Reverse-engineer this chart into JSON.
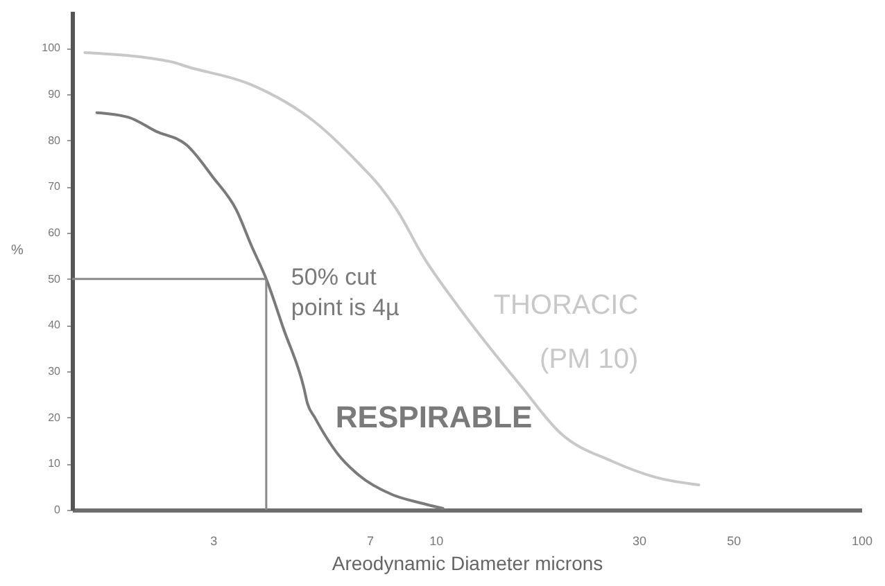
{
  "chart_data": {
    "type": "line",
    "xlabel": "Areodynamic Diameter microns",
    "ylabel": "%",
    "log": "x",
    "xlim": [
      1.4,
      100
    ],
    "xticks": [
      3,
      7,
      10,
      30,
      50,
      100
    ],
    "ylim": [
      0,
      108
    ],
    "yticks": [
      0,
      10,
      20,
      30,
      40,
      50,
      60,
      70,
      80,
      90,
      100
    ],
    "series": [
      {
        "name": "THORACIC (PM 10)",
        "color": "#c8c8c8",
        "x": [
          1.5,
          2.4,
          2.6,
          3.7,
          5.2,
          6.6,
          7.4,
          8.1,
          9.4,
          11.2,
          13.3,
          15.8,
          19.7,
          26,
          33,
          41.5
        ],
        "values": [
          99,
          97,
          96,
          92,
          84,
          75,
          70,
          65,
          54.5,
          44.5,
          35.5,
          27,
          16.5,
          10.5,
          7,
          5.4
        ]
      },
      {
        "name": "RESPIRABLE",
        "color": "#7a7a7a",
        "x": [
          1.6,
          1.9,
          2.2,
          2.6,
          3,
          3.4,
          3.7,
          4,
          4.4,
          4.9,
          5,
          5.2,
          5.9,
          6.6,
          7.9,
          9.2,
          10.4
        ],
        "values": [
          86,
          85,
          82,
          79,
          72,
          65,
          57,
          50,
          39,
          26.5,
          23,
          20,
          12,
          7.5,
          3.3,
          1.5,
          0.3
        ]
      }
    ],
    "ref_lines": [
      {
        "axis": "y",
        "value": 50,
        "color": "#8a8a8a"
      },
      {
        "axis": "x",
        "value": 4,
        "color": "#8a8a8a"
      }
    ],
    "annotations": [
      {
        "text": "50% cut point is 4µ",
        "x": 4,
        "y": 50
      }
    ],
    "marker": "none",
    "line_style": "solid"
  }
}
